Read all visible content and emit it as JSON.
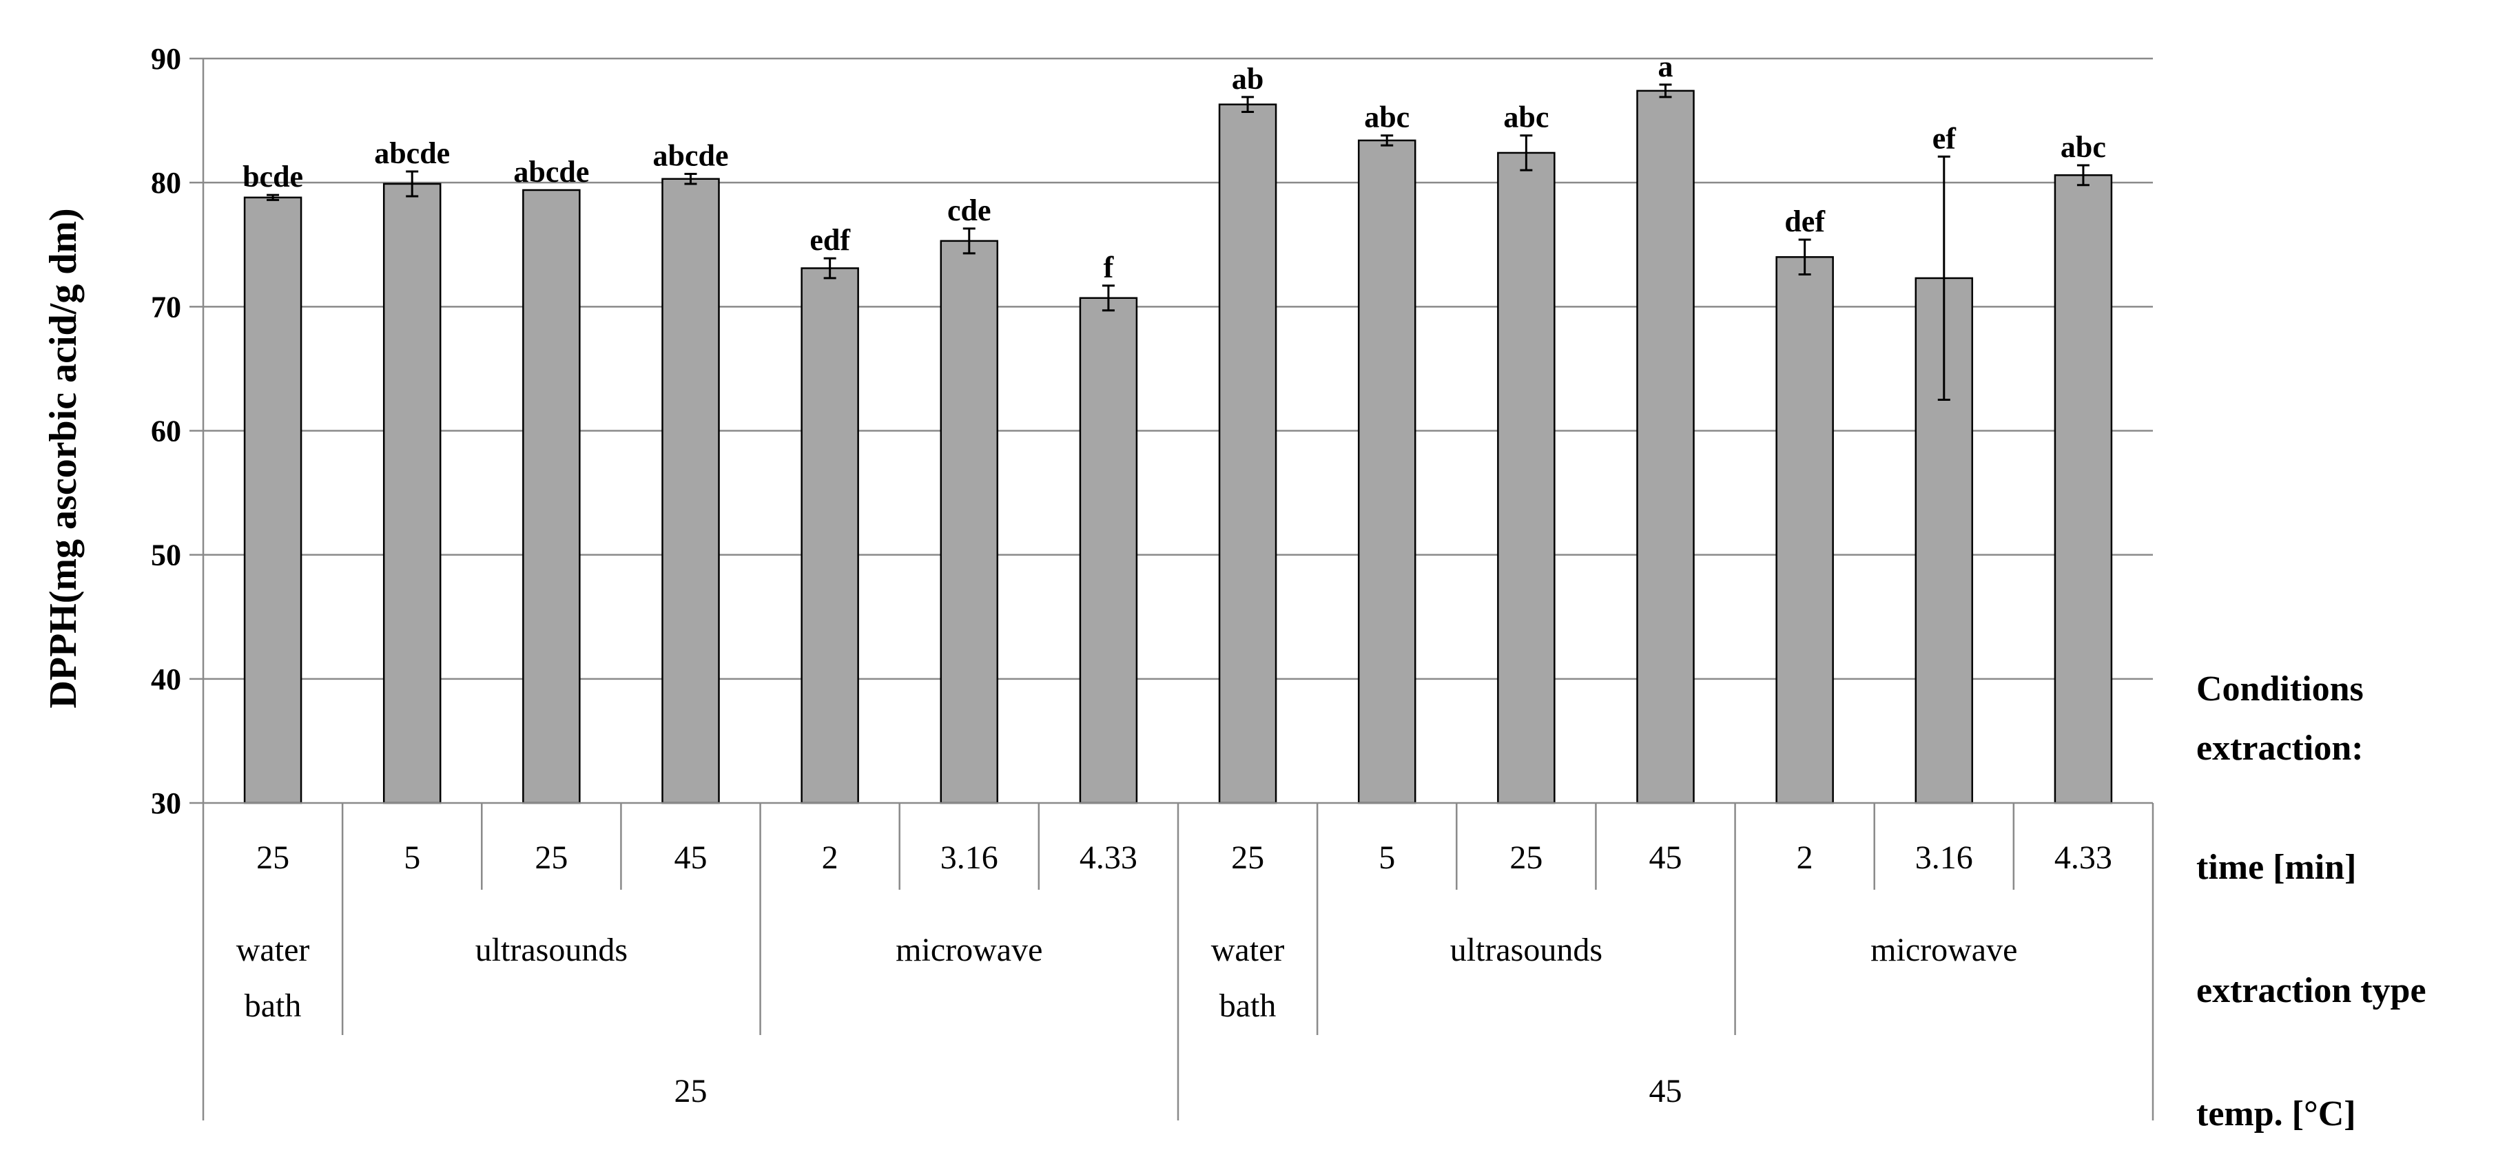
{
  "chart_data": {
    "type": "bar",
    "ylabel": "DPPH(mg ascorbic acid/g dm)",
    "ylim": [
      30,
      90
    ],
    "yticks": [
      30,
      40,
      50,
      60,
      70,
      80,
      90
    ],
    "grid": true,
    "bar_color": "#a6a6a6",
    "categories": [
      {
        "time": "25",
        "type_group": 0
      },
      {
        "time": "5",
        "type_group": 1
      },
      {
        "time": "25",
        "type_group": 1
      },
      {
        "time": "45",
        "type_group": 1
      },
      {
        "time": "2",
        "type_group": 2
      },
      {
        "time": "3.16",
        "type_group": 2
      },
      {
        "time": "4.33",
        "type_group": 2
      },
      {
        "time": "25",
        "type_group": 3
      },
      {
        "time": "5",
        "type_group": 4
      },
      {
        "time": "25",
        "type_group": 4
      },
      {
        "time": "45",
        "type_group": 4
      },
      {
        "time": "2",
        "type_group": 5
      },
      {
        "time": "3.16",
        "type_group": 5
      },
      {
        "time": "4.33",
        "type_group": 5
      }
    ],
    "values": [
      78.8,
      79.9,
      79.4,
      80.3,
      73.1,
      75.3,
      70.7,
      86.3,
      83.4,
      82.4,
      87.4,
      74.0,
      72.3,
      80.6
    ],
    "errors": [
      0.2,
      1.0,
      0.0,
      0.4,
      0.8,
      1.0,
      1.0,
      0.6,
      0.4,
      1.4,
      0.5,
      1.4,
      9.8,
      0.8
    ],
    "significance": [
      "bcde",
      "abcde",
      "abcde",
      "abcde",
      "edf",
      "cde",
      "f",
      "ab",
      "abc",
      "abc",
      "a",
      "def",
      "ef",
      "abc"
    ],
    "extraction_types": [
      {
        "label_lines": [
          "water",
          "bath"
        ],
        "span": 1
      },
      {
        "label_lines": [
          "ultrasounds"
        ],
        "span": 3
      },
      {
        "label_lines": [
          "microwave"
        ],
        "span": 3
      },
      {
        "label_lines": [
          "water",
          "bath"
        ],
        "span": 1
      },
      {
        "label_lines": [
          "ultrasounds"
        ],
        "span": 3
      },
      {
        "label_lines": [
          "microwave"
        ],
        "span": 3
      }
    ],
    "temperatures": [
      {
        "label": "25",
        "span": 7
      },
      {
        "label": "45",
        "span": 7
      }
    ],
    "row_labels": {
      "conditions": [
        "Conditions",
        "extraction:"
      ],
      "time": "time [min]",
      "extraction_type": "extraction type",
      "temp": "temp. [°C]"
    }
  }
}
